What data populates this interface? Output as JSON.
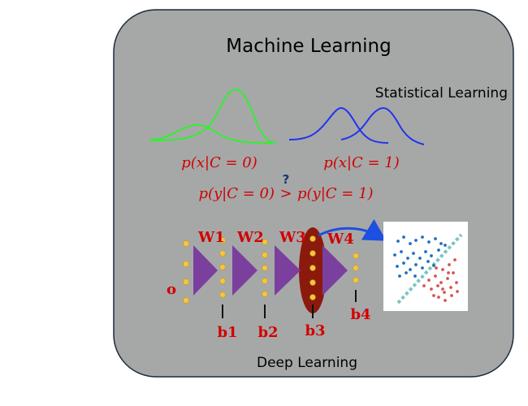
{
  "title": "Machine Learning",
  "statistical": {
    "label": "Statistical Learning",
    "prob_class0": "p(x|C = 0)",
    "prob_class1": "p(x|C = 1)",
    "comparison_left": "p(y|C = 0)",
    "comparison_op": ">",
    "comparison_right": "p(y|C = 1)",
    "question": "?"
  },
  "deep": {
    "label": "Deep Learning",
    "input_label": "o",
    "weights": [
      "W1",
      "W2",
      "W3",
      "W4"
    ],
    "biases": [
      "b1",
      "b2",
      "b3",
      "b4"
    ]
  },
  "colors": {
    "panel": "#a6a8a8",
    "curve_class0": "#33ee33",
    "curve_class1": "#2233ee",
    "math_text": "#d20000",
    "neuron": "#f5c542",
    "layer_arrow": "#7b3f9e",
    "highlight": "#8b1a0c",
    "pointer_arrow": "#1d4fe0",
    "scatter_blue": "#1f6fbf",
    "scatter_red": "#d9534f",
    "separator": "#7ec4c4"
  }
}
